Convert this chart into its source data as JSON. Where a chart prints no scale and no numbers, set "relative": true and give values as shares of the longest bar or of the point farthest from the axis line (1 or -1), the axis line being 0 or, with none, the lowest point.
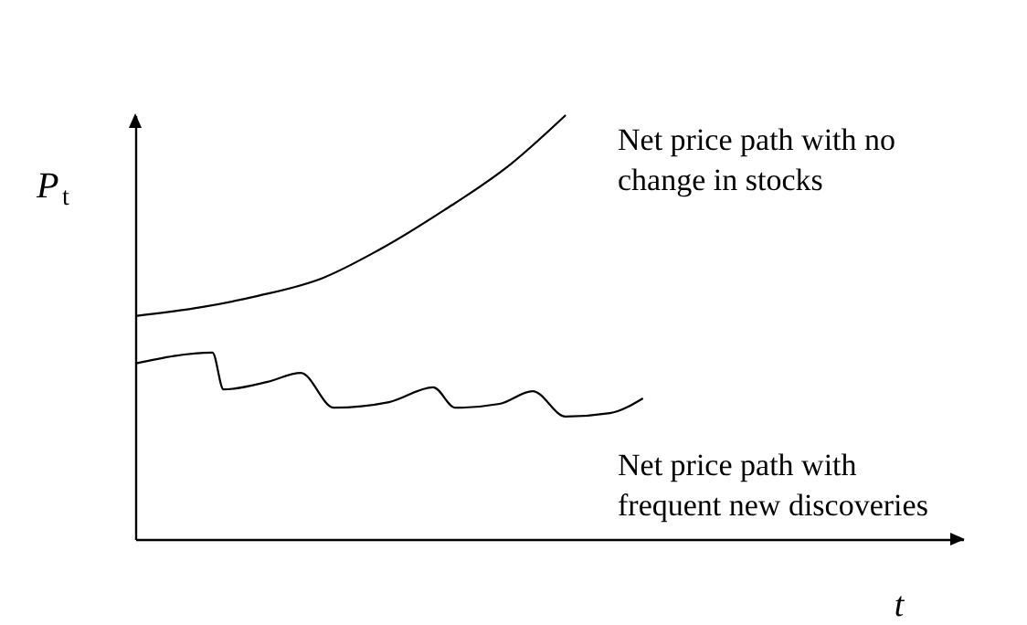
{
  "chart_data": {
    "type": "line",
    "relative": true,
    "xlabel": "t",
    "ylabel": "P$_{t}$",
    "marker": "none",
    "line_style": "solid",
    "categories": [
      null,
      null,
      null,
      null,
      null,
      null,
      null,
      null,
      null,
      null,
      null,
      null,
      null,
      null,
      null,
      null,
      null,
      null,
      null,
      null,
      null,
      null,
      null,
      null,
      null,
      null,
      null,
      null,
      null,
      null,
      null,
      null,
      null,
      null,
      null,
      null,
      null,
      null,
      null,
      null,
      null,
      null,
      null,
      null,
      null,
      null,
      null,
      null,
      null,
      null,
      null,
      null,
      null,
      null,
      null,
      null,
      null,
      null,
      null,
      null,
      null,
      null,
      null,
      null,
      null,
      null,
      null,
      null,
      null,
      null,
      null,
      null,
      null,
      null,
      null,
      null
    ],
    "series": [
      {
        "name": "Net price path with no\nchange in stocks",
        "color": "#000000",
        "values": [
          0.526,
          null,
          null,
          null,
          null,
          null,
          0.547,
          null,
          null,
          null,
          null,
          0.573,
          null,
          null,
          null,
          null,
          null,
          0.616,
          null,
          null,
          null,
          null,
          0.681,
          null,
          null,
          null,
          null,
          null,
          0.776,
          null,
          null,
          null,
          null,
          null,
          0.884,
          null,
          null,
          null,
          null,
          1,
          null,
          null,
          null,
          null,
          null,
          null,
          null,
          null,
          null,
          null,
          null,
          null,
          null,
          null,
          null,
          null,
          null,
          null,
          null,
          null,
          null,
          null,
          null,
          null,
          null,
          null,
          null,
          null,
          null,
          null,
          null,
          null,
          null,
          null,
          null,
          null
        ]
      },
      {
        "name": "Net price path with\nfrequent new discoveries",
        "color": "#000000",
        "values": [
          0.414,
          null,
          null,
          null,
          null,
          null,
          null,
          0.44,
          0.353,
          null,
          null,
          null,
          0.371,
          null,
          null,
          0.392,
          null,
          null,
          0.31,
          null,
          null,
          null,
          null,
          0.323,
          null,
          null,
          null,
          0.358,
          null,
          0.31,
          null,
          null,
          null,
          0.319,
          null,
          null,
          0.349,
          null,
          null,
          0.289,
          null,
          null,
          null,
          0.297,
          null,
          null,
          0.332,
          null,
          null,
          null,
          null,
          null,
          null,
          null,
          null,
          null,
          null,
          null,
          null,
          null,
          null,
          null,
          null,
          null,
          null,
          null,
          null,
          null,
          null,
          null,
          null,
          null,
          null,
          null,
          null,
          null
        ]
      }
    ]
  }
}
